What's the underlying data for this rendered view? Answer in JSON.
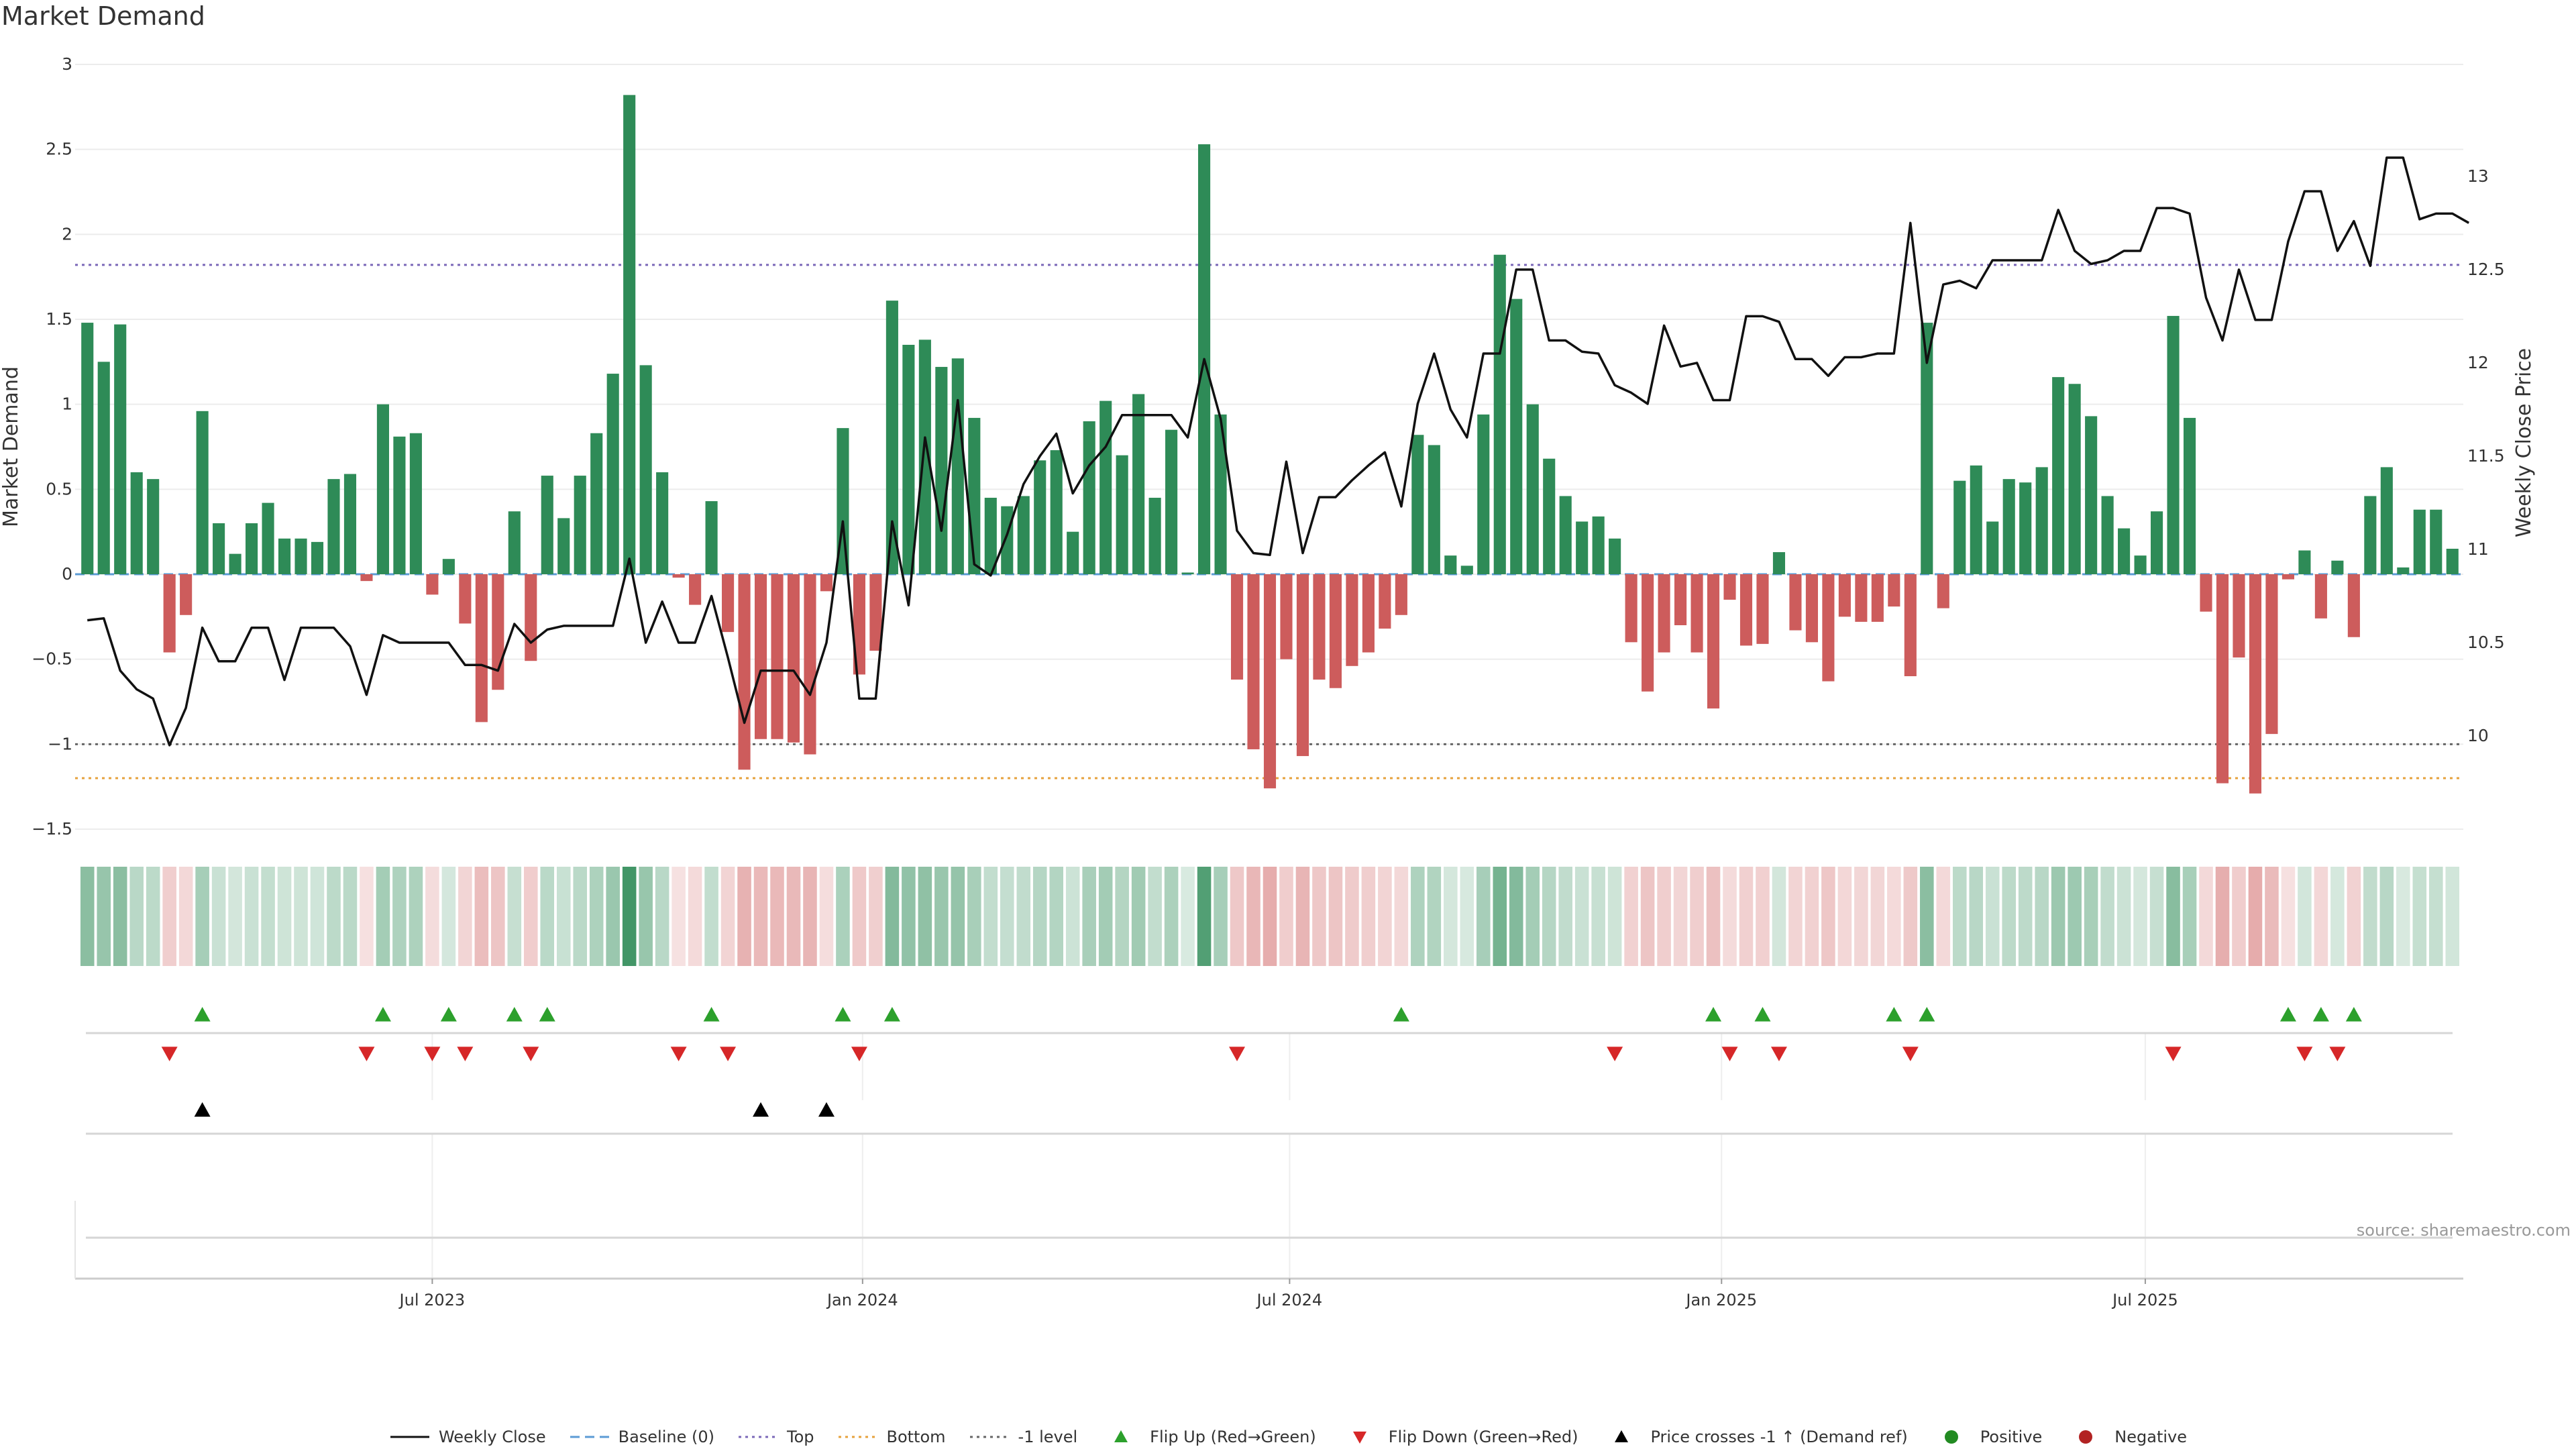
{
  "title": "Market Demand",
  "source": "source: sharemaestro.com",
  "colors": {
    "green": "#2e8b57",
    "red": "#cd5c5c",
    "flip_up": "#2ca02c",
    "flip_down": "#d62728",
    "cross": "#000000",
    "top_line": "#7b68b8",
    "bottom_line": "#e6a23c",
    "minus1_line": "#666666",
    "baseline": "#5b9bd5",
    "price": "#111111"
  },
  "legend": [
    {
      "key": "weekly_close",
      "label": "Weekly Close"
    },
    {
      "key": "baseline",
      "label": "Baseline (0)"
    },
    {
      "key": "top",
      "label": "Top"
    },
    {
      "key": "bottom",
      "label": "Bottom"
    },
    {
      "key": "minus1",
      "label": "-1 level"
    },
    {
      "key": "flip_up",
      "label": "Flip Up (Red→Green)"
    },
    {
      "key": "flip_down",
      "label": "Flip Down (Green→Red)"
    },
    {
      "key": "cross",
      "label": "Price crosses -1 ↑ (Demand ref)"
    },
    {
      "key": "positive",
      "label": "Positive"
    },
    {
      "key": "negative",
      "label": "Negative"
    }
  ],
  "chart_data": {
    "type": "bar",
    "title": "Market Demand",
    "ylabel_left": "Market Demand",
    "ylabel_right": "Weekly Close Price",
    "left_ylim": [
      -1.5,
      3
    ],
    "left_ticks": [
      3,
      2.5,
      2,
      1.5,
      1,
      0.5,
      0,
      -0.5,
      -1,
      -1.5
    ],
    "left_tick_labels": [
      "3",
      "2.5",
      "2",
      "1.5",
      "1",
      "0.5",
      "0",
      "−0.5",
      "−1",
      "−1.5"
    ],
    "right_ylim": [
      9.5,
      13.6
    ],
    "right_ticks": [
      13,
      12.5,
      12,
      11.5,
      11,
      10.5,
      10
    ],
    "right_tick_labels": [
      "13",
      "12.5",
      "12",
      "11.5",
      "11",
      "10.5",
      "10"
    ],
    "reference_lines": {
      "baseline": 0,
      "top": 1.82,
      "minus1": -1.0,
      "bottom": -1.2
    },
    "x_tick_labels": [
      {
        "week": 21.5,
        "label": "Jul 2023"
      },
      {
        "week": 47.7,
        "label": "Jan 2024"
      },
      {
        "week": 73.7,
        "label": "Jul 2024"
      },
      {
        "week": 100,
        "label": "Jan 2025"
      },
      {
        "week": 125.8,
        "label": "Jul 2025"
      }
    ],
    "series": [
      {
        "name": "Market Demand",
        "values": [
          1.48,
          1.25,
          1.47,
          0.6,
          0.56,
          -0.46,
          -0.24,
          0.96,
          0.3,
          0.12,
          0.3,
          0.42,
          0.21,
          0.21,
          0.19,
          0.56,
          0.59,
          -0.04,
          1.0,
          0.81,
          0.83,
          -0.12,
          0.09,
          -0.29,
          -0.87,
          -0.68,
          0.37,
          -0.51,
          0.58,
          0.33,
          0.58,
          0.83,
          1.18,
          2.82,
          1.23,
          0.6,
          -0.02,
          -0.18,
          0.43,
          -0.34,
          -1.15,
          -0.97,
          -0.97,
          -0.99,
          -1.06,
          -0.1,
          0.86,
          -0.59,
          -0.45,
          1.61,
          1.35,
          1.38,
          1.22,
          1.27,
          0.92,
          0.45,
          0.4,
          0.46,
          0.67,
          0.73,
          0.25,
          0.9,
          1.02,
          0.7,
          1.06,
          0.45,
          0.85,
          0.01,
          2.53,
          0.94,
          -0.62,
          -1.03,
          -1.26,
          -0.5,
          -1.07,
          -0.62,
          -0.67,
          -0.54,
          -0.46,
          -0.32,
          -0.24,
          0.82,
          0.76,
          0.11,
          0.05,
          0.94,
          1.88,
          1.62,
          1.0,
          0.68,
          0.46,
          0.31,
          0.34,
          0.21,
          -0.4,
          -0.69,
          -0.46,
          -0.3,
          -0.46,
          -0.79,
          -0.15,
          -0.42,
          -0.41,
          0.13,
          -0.33,
          -0.4,
          -0.63,
          -0.25,
          -0.28,
          -0.28,
          -0.19,
          -0.6,
          1.48,
          -0.2,
          0.55,
          0.64,
          0.31,
          0.56,
          0.54,
          0.63,
          1.16,
          1.12,
          0.93,
          0.46,
          0.27,
          0.11,
          0.37,
          1.52,
          0.92,
          -0.22,
          -1.23,
          -0.49,
          -1.29,
          -0.94,
          -0.03,
          0.14,
          -0.26,
          0.08,
          -0.37,
          0.46,
          0.63,
          0.04,
          0.38,
          0.38,
          0.15
        ]
      },
      {
        "name": "Weekly Close",
        "values": [
          10.62,
          10.63,
          10.35,
          10.25,
          10.2,
          9.95,
          10.15,
          10.58,
          10.4,
          10.4,
          10.58,
          10.58,
          10.3,
          10.58,
          10.58,
          10.58,
          10.48,
          10.22,
          10.54,
          10.5,
          10.5,
          10.5,
          10.5,
          10.38,
          10.38,
          10.35,
          10.6,
          10.5,
          10.57,
          10.59,
          10.59,
          10.59,
          10.59,
          10.95,
          10.5,
          10.72,
          10.5,
          10.5,
          10.75,
          10.42,
          10.07,
          10.35,
          10.35,
          10.35,
          10.22,
          10.5,
          11.15,
          10.2,
          10.2,
          11.15,
          10.7,
          11.6,
          11.1,
          11.8,
          10.92,
          10.86,
          11.08,
          11.35,
          11.5,
          11.62,
          11.3,
          11.45,
          11.55,
          11.72,
          11.72,
          11.72,
          11.72,
          11.6,
          12.02,
          11.7,
          11.1,
          10.98,
          10.97,
          11.47,
          10.98,
          11.28,
          11.28,
          11.37,
          11.45,
          11.52,
          11.23,
          11.78,
          12.05,
          11.75,
          11.6,
          12.05,
          12.05,
          12.5,
          12.5,
          12.12,
          12.12,
          12.06,
          12.05,
          11.88,
          11.84,
          11.78,
          12.2,
          11.98,
          12.0,
          11.8,
          11.8,
          12.25,
          12.25,
          12.22,
          12.02,
          12.02,
          11.93,
          12.03,
          12.03,
          12.05,
          12.05,
          12.75,
          12.0,
          12.42,
          12.44,
          12.4,
          12.55,
          12.55,
          12.55,
          12.55,
          12.82,
          12.6,
          12.53,
          12.55,
          12.6,
          12.6,
          12.83,
          12.83,
          12.8,
          12.35,
          12.12,
          12.5,
          12.23,
          12.23,
          12.65,
          12.92,
          12.92,
          12.6,
          12.76,
          12.52,
          13.1,
          13.1,
          12.77,
          12.8,
          12.8,
          12.75
        ]
      }
    ],
    "flip_up_weeks": [
      7,
      18,
      22,
      26,
      28,
      38,
      46,
      49,
      80,
      99,
      102,
      110,
      112,
      134,
      136,
      138
    ],
    "flip_down_weeks": [
      5,
      17,
      21,
      23,
      27,
      36,
      39,
      47,
      70,
      93,
      100,
      103,
      111,
      127,
      135,
      137
    ],
    "price_cross_weeks": [
      7,
      41,
      45
    ]
  }
}
